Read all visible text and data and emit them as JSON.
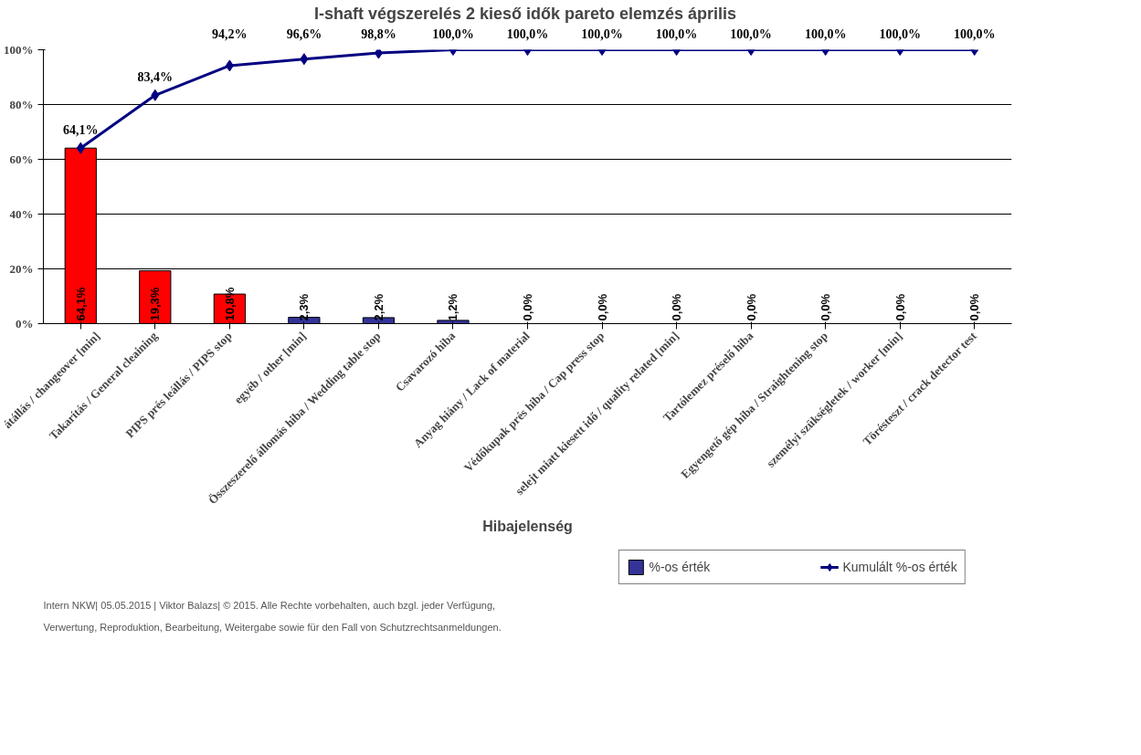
{
  "chart_data": {
    "type": "bar",
    "title": "I-shaft végszerelés 2 kieső idők pareto elemzés  április",
    "xlabel": "Hibajelenség",
    "categories": [
      "átállás / changeover [min]",
      "Takarítás / General cleaining",
      "PIPS prés leállás / PIPS stop",
      "egyéb / other [min]",
      "Összeszerelő állomás hiba / Wedding table stop",
      "Csavarozó hiba",
      "Anyag hiány / Lack of material",
      "Védőkupak prés hiba / Cap press stop",
      "selejt miatt kiesett idő / quality related [min]",
      "Tartólemez préselő hiba",
      "Egyengető gép hiba / Straightening stop",
      "személyi szükségletek / worker [min]",
      "Törésteszt / crack detector test"
    ],
    "series": [
      {
        "name": "%-os érték",
        "color": "#333399",
        "colors": [
          "#ff0000",
          "#ff0000",
          "#ff0000",
          "#333399",
          "#333399",
          "#333399",
          "#333399",
          "#333399",
          "#333399",
          "#333399",
          "#333399",
          "#333399",
          "#333399"
        ],
        "values": [
          64.1,
          19.3,
          10.8,
          2.3,
          2.2,
          1.2,
          0,
          0,
          0,
          0,
          0,
          0,
          0
        ],
        "value_labels": [
          "64,1%",
          "19,3%",
          "10,8%",
          "2,3%",
          "2,2%",
          "1,2%",
          "0,0%",
          "0,0%",
          "0,0%",
          "0,0%",
          "0,0%",
          "0,0%",
          "0,0%"
        ]
      },
      {
        "name": "Kumulált %-os érték",
        "type": "line",
        "color": "#000080",
        "marker": "diamond",
        "values": [
          64.1,
          83.4,
          94.2,
          96.6,
          98.8,
          100,
          100,
          100,
          100,
          100,
          100,
          100,
          100
        ],
        "value_labels": [
          "64,1%",
          "83,4%",
          "94,2%",
          "96,6%",
          "98,8%",
          "100,0%",
          "100,0%",
          "100,0%",
          "100,0%",
          "100,0%",
          "100,0%",
          "100,0%",
          "100,0%"
        ]
      }
    ],
    "ylim": [
      0,
      100
    ],
    "yticks": [
      {
        "value": 0,
        "label": "0%"
      },
      {
        "value": 20,
        "label": "20%"
      },
      {
        "value": 40,
        "label": "40%"
      },
      {
        "value": 60,
        "label": "60%"
      },
      {
        "value": 80,
        "label": "80%"
      },
      {
        "value": 100,
        "label": "100%"
      }
    ],
    "grid": "y",
    "legend": "bottom",
    "annotations": [
      "Intern  NKW| 05.05.2015 | Viktor Balazs| © 2015.  Alle Rechte vorbehalten, auch bzgl. jeder Verfügung,",
      "Verwertung, Reproduktion, Bearbeitung, Weitergabe sowie für den Fall von Schutzrechtsanmeldungen."
    ]
  }
}
